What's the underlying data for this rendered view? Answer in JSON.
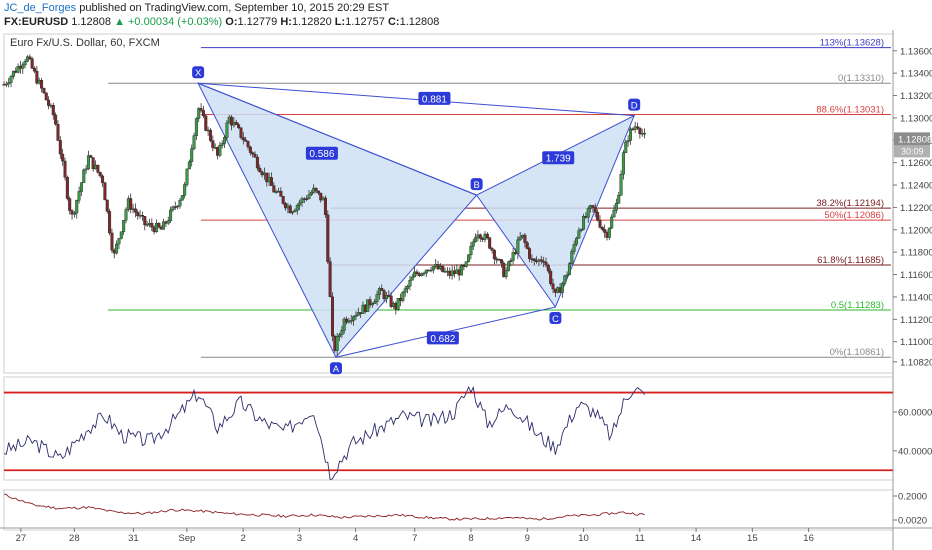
{
  "header": {
    "author": "JC_de_Forges",
    "published_text": "published on TradingView.com, September 10, 2015 20:29 EST",
    "symbol": "FX:EURUSD",
    "last": "1.12808",
    "change": "▲ +0.00034 (+0.03%)",
    "o_label": "O:",
    "o": "1.12779",
    "h_label": "H:",
    "h": "1.12820",
    "l_label": "L:",
    "l": "1.12757",
    "c_label": "C:",
    "c": "1.12808"
  },
  "chart_data": {
    "type": "candlestick",
    "title": "Euro Fx/U.S. Dollar, 60, FXCM",
    "price_axis": {
      "ylim": [
        1.1072,
        1.1375
      ],
      "ticks": [
        "1.13600",
        "1.13400",
        "1.13200",
        "1.13000",
        "1.12800",
        "1.12600",
        "1.12400",
        "1.12200",
        "1.12000",
        "1.11800",
        "1.11600",
        "1.11400",
        "1.11200",
        "1.11000",
        "1.10820"
      ],
      "tick_values": [
        1.136,
        1.134,
        1.132,
        1.13,
        1.128,
        1.126,
        1.124,
        1.122,
        1.12,
        1.118,
        1.116,
        1.114,
        1.112,
        1.11,
        1.1082
      ],
      "last_price_label": "1.12808",
      "countdown_label": "30:09"
    },
    "x_axis": {
      "xlim": [
        0,
        15.8
      ],
      "tick_labels": [
        "27",
        "28",
        "31",
        "Sep",
        "2",
        "3",
        "4",
        "7",
        "8",
        "9",
        "10",
        "11",
        "14",
        "15",
        "16"
      ],
      "tick_positions": [
        0.3,
        1.25,
        2.3,
        3.25,
        4.25,
        5.25,
        6.25,
        7.3,
        8.3,
        9.3,
        10.3,
        11.3,
        12.3,
        13.3,
        14.3
      ]
    },
    "candles_anchor_path": [
      [
        0,
        1.133
      ],
      [
        0.4,
        1.1355
      ],
      [
        0.9,
        1.13
      ],
      [
        1.2,
        1.121
      ],
      [
        1.5,
        1.1265
      ],
      [
        1.75,
        1.1245
      ],
      [
        1.95,
        1.1175
      ],
      [
        2.2,
        1.1225
      ],
      [
        2.5,
        1.1205
      ],
      [
        2.8,
        1.12
      ],
      [
        3.2,
        1.1235
      ],
      [
        3.45,
        1.131
      ],
      [
        3.8,
        1.1265
      ],
      [
        4.0,
        1.13
      ],
      [
        4.25,
        1.1282
      ],
      [
        4.5,
        1.126
      ],
      [
        4.8,
        1.1235
      ],
      [
        5.1,
        1.1218
      ],
      [
        5.5,
        1.1235
      ],
      [
        5.7,
        1.1225
      ],
      [
        5.85,
        1.109
      ],
      [
        6.05,
        1.112
      ],
      [
        6.4,
        1.113
      ],
      [
        6.7,
        1.1145
      ],
      [
        6.95,
        1.113
      ],
      [
        7.3,
        1.116
      ],
      [
        7.6,
        1.1168
      ],
      [
        7.9,
        1.116
      ],
      [
        8.2,
        1.1165
      ],
      [
        8.4,
        1.12
      ],
      [
        8.6,
        1.119
      ],
      [
        8.9,
        1.116
      ],
      [
        9.2,
        1.1195
      ],
      [
        9.4,
        1.117
      ],
      [
        9.6,
        1.1175
      ],
      [
        9.8,
        1.114
      ],
      [
        10.0,
        1.116
      ],
      [
        10.2,
        1.12
      ],
      [
        10.45,
        1.122
      ],
      [
        10.7,
        1.1195
      ],
      [
        10.9,
        1.1225
      ],
      [
        11.0,
        1.1265
      ],
      [
        11.1,
        1.1285
      ],
      [
        11.25,
        1.1295
      ],
      [
        11.4,
        1.1281
      ]
    ],
    "pattern": {
      "points": [
        {
          "label": "X",
          "x": 3.45,
          "y": 1.1331
        },
        {
          "label": "A",
          "x": 5.9,
          "y": 1.10861
        },
        {
          "label": "B",
          "x": 8.4,
          "y": 1.1231
        },
        {
          "label": "C",
          "x": 9.8,
          "y": 1.1131
        },
        {
          "label": "D",
          "x": 11.2,
          "y": 1.1302
        }
      ],
      "ratios": [
        {
          "label": "0.586",
          "x": 5.65,
          "y": 1.1268
        },
        {
          "label": "0.881",
          "x": 7.65,
          "y": 1.1317
        },
        {
          "label": "0.682",
          "x": 7.8,
          "y": 1.1103
        },
        {
          "label": "1.739",
          "x": 9.85,
          "y": 1.1264
        }
      ],
      "fill": "#cfe0f4",
      "stroke": "#3c4fd1"
    },
    "fib_levels": [
      {
        "label": "113%(1.13628)",
        "value": 1.13628,
        "color": "#3b3dbf",
        "x_start": 3.5
      },
      {
        "label": "0(1.13310)",
        "value": 1.1331,
        "color": "#8a8a8a",
        "x_start": 1.85
      },
      {
        "label": "88.6%(1.13031)",
        "value": 1.13031,
        "color": "#d94040",
        "x_start": 3.5
      },
      {
        "label": "38.2%(1.12194)",
        "value": 1.12194,
        "color": "#7a2020",
        "x_start": 5.8
      },
      {
        "label": "50%(1.12086)",
        "value": 1.12086,
        "color": "#d94040",
        "x_start": 3.5
      },
      {
        "label": "61.8%(1.11685)",
        "value": 1.11685,
        "color": "#7a2020",
        "x_start": 5.8
      },
      {
        "label": "0.5(1.11283)",
        "value": 1.11283,
        "color": "#2fb52f",
        "x_start": 1.85
      },
      {
        "label": "0%(1.10861)",
        "value": 1.10861,
        "color": "#8a8a8a",
        "x_start": 3.5
      }
    ],
    "oscillator": {
      "ticks": [
        "60.0000",
        "40.0000"
      ],
      "tick_values": [
        60,
        40
      ],
      "ylim": [
        25,
        78
      ],
      "levels": [
        {
          "value": 70,
          "color": "#d62020"
        },
        {
          "value": 30,
          "color": "#d62020"
        }
      ],
      "path": [
        [
          0,
          40
        ],
        [
          0.5,
          45
        ],
        [
          1.0,
          36
        ],
        [
          1.5,
          52
        ],
        [
          1.8,
          58
        ],
        [
          2.1,
          48
        ],
        [
          2.6,
          45
        ],
        [
          3.0,
          55
        ],
        [
          3.45,
          70
        ],
        [
          3.8,
          52
        ],
        [
          4.2,
          65
        ],
        [
          4.6,
          55
        ],
        [
          5.0,
          50
        ],
        [
          5.5,
          62
        ],
        [
          5.8,
          28
        ],
        [
          6.2,
          44
        ],
        [
          6.7,
          52
        ],
        [
          7.1,
          58
        ],
        [
          7.6,
          55
        ],
        [
          8.0,
          60
        ],
        [
          8.3,
          74
        ],
        [
          8.6,
          54
        ],
        [
          9.0,
          64
        ],
        [
          9.5,
          48
        ],
        [
          9.8,
          42
        ],
        [
          10.2,
          64
        ],
        [
          10.5,
          60
        ],
        [
          10.8,
          47
        ],
        [
          11.0,
          64
        ],
        [
          11.2,
          74
        ],
        [
          11.4,
          67
        ]
      ]
    },
    "lower_indicator": {
      "ticks": [
        "0.2000",
        "0.0020"
      ],
      "path": [
        [
          0,
          0.2
        ],
        [
          0.5,
          0.12
        ],
        [
          1.0,
          0.09
        ],
        [
          1.5,
          0.1
        ],
        [
          2.0,
          0.06
        ],
        [
          2.5,
          0.05
        ],
        [
          3.0,
          0.08
        ],
        [
          3.5,
          0.07
        ],
        [
          4.0,
          0.05
        ],
        [
          4.5,
          0.04
        ],
        [
          5.0,
          0.03
        ],
        [
          5.5,
          0.04
        ],
        [
          6.0,
          0.02
        ],
        [
          6.5,
          0.03
        ],
        [
          7.0,
          0.04
        ],
        [
          7.5,
          0.02
        ],
        [
          8.0,
          0.005
        ],
        [
          8.5,
          0.01
        ],
        [
          9.0,
          0.02
        ],
        [
          9.5,
          0.005
        ],
        [
          10.0,
          0.03
        ],
        [
          10.5,
          0.04
        ],
        [
          11.0,
          0.06
        ],
        [
          11.4,
          0.04
        ]
      ]
    }
  }
}
